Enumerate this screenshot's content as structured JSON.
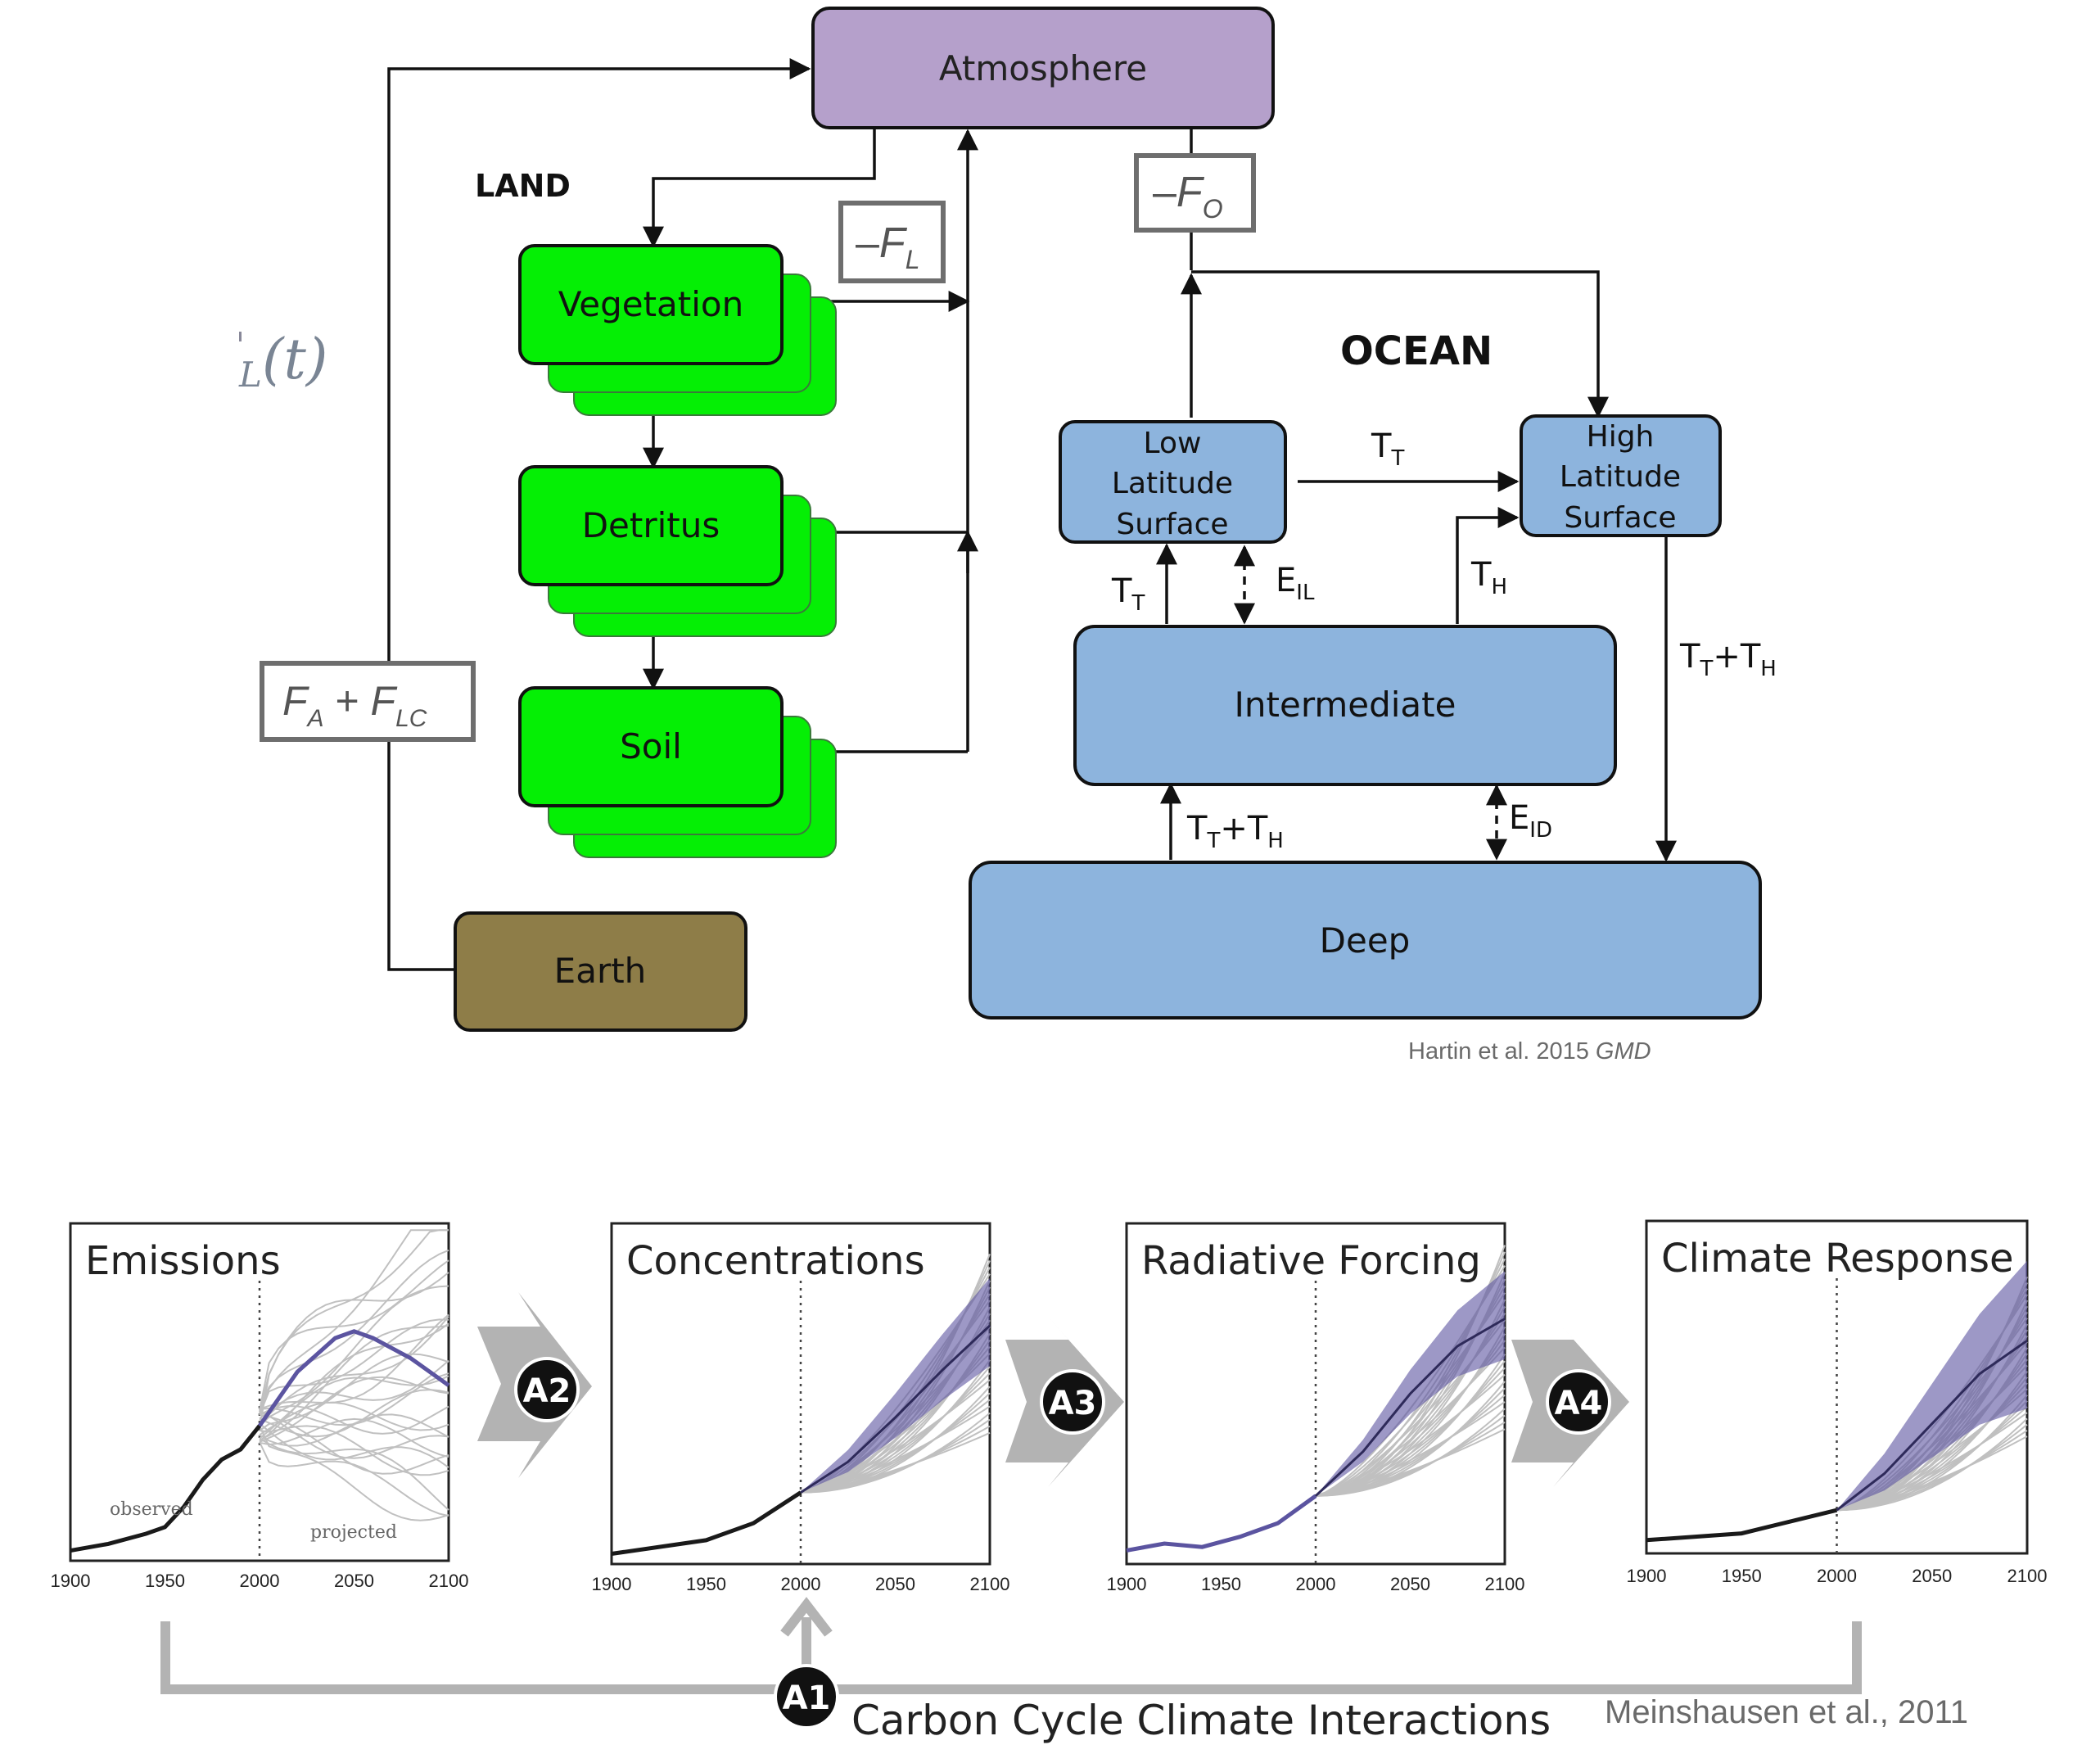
{
  "colors": {
    "atmosphere": "#b5a0cb",
    "land_box": "#05ef05",
    "ocean_box": "#8db4dd",
    "earth_box": "#8e7d48",
    "flux_label_border": "#6e6e6e",
    "chart_line": "#1a1a1a",
    "chart_band": "#5b54a0",
    "chart_spaghetti": "#c0c0c0",
    "gray_arrow": "#b3b3b3",
    "black_badge": "#111111"
  },
  "top_diagram": {
    "atmosphere": "Atmosphere",
    "land_label": "LAND",
    "ocean_label": "OCEAN",
    "land_boxes": [
      "Vegetation",
      "Detritus",
      "Soil"
    ],
    "earth": "Earth",
    "ocean_boxes": {
      "low": [
        "Low",
        "Latitude",
        "Surface"
      ],
      "high": [
        "High",
        "Latitude",
        "Surface"
      ],
      "intermediate": "Intermediate",
      "deep": "Deep"
    },
    "flux_labels": {
      "land_sign": "–",
      "land_base": "F",
      "land_sub": "L",
      "ocean_sign": "–",
      "ocean_base": "F",
      "ocean_sub": "O",
      "anthro_base1": "F",
      "anthro_sub1": "A",
      "anthro_plus": " + ",
      "anthro_base2": "F",
      "anthro_sub2": "LC"
    },
    "partial_formula": {
      "sub": "L",
      "rest": "(t)"
    },
    "transport_labels": {
      "tt_base": "T",
      "tt_sub": "T",
      "th_base": "T",
      "th_sub": "H",
      "eil_base": "E",
      "eil_sub": "IL",
      "eid_base": "E",
      "eid_sub": "ID",
      "plus": "+"
    },
    "citation": {
      "text": "Hartin et al. 2015 ",
      "journal": "GMD"
    }
  },
  "bottom_figure": {
    "caption": "Carbon Cycle Climate Interactions",
    "citation": "Meinshausen et al., 2011",
    "badges": [
      "A1",
      "A2",
      "A3",
      "A4"
    ],
    "annotations": {
      "observed": "observed",
      "projected": "projected"
    },
    "panels": [
      "Emissions",
      "Concentrations",
      "Radiative Forcing",
      "Climate Response"
    ]
  },
  "chart_data": [
    {
      "type": "line",
      "title": "Emissions",
      "x_ticks": [
        "1900",
        "1950",
        "2000",
        "2050",
        "2100"
      ],
      "xlim": [
        1900,
        2100
      ],
      "annotations": [
        "observed",
        "projected"
      ],
      "series": [
        {
          "x": [
            1900,
            1920,
            1940,
            1950,
            1960,
            1970,
            1980,
            1990,
            2000
          ],
          "y": [
            0.03,
            0.05,
            0.08,
            0.1,
            0.16,
            0.24,
            0.3,
            0.33,
            0.4
          ]
        },
        {
          "x": [
            2000,
            2020,
            2040,
            2050,
            2060,
            2080,
            2100
          ],
          "y": [
            0.4,
            0.56,
            0.66,
            0.68,
            0.66,
            0.6,
            0.52
          ]
        }
      ]
    },
    {
      "type": "line",
      "title": "Concentrations",
      "x_ticks": [
        "1900",
        "1950",
        "2000",
        "2050",
        "2100"
      ],
      "xlim": [
        1900,
        2100
      ],
      "series": [
        {
          "x": [
            1900,
            1950,
            1975,
            2000
          ],
          "y": [
            0.03,
            0.07,
            0.12,
            0.21
          ]
        },
        {
          "x": [
            2000,
            2025,
            2050,
            2075,
            2100
          ],
          "y": [
            0.21,
            0.3,
            0.43,
            0.57,
            0.7
          ]
        }
      ]
    },
    {
      "type": "line",
      "title": "Radiative Forcing",
      "x_ticks": [
        "1900",
        "1950",
        "2000",
        "2050",
        "2100"
      ],
      "xlim": [
        1900,
        2100
      ],
      "series": [
        {
          "x": [
            1900,
            1920,
            1940,
            1960,
            1980,
            2000
          ],
          "y": [
            0.04,
            0.06,
            0.05,
            0.08,
            0.12,
            0.2
          ]
        },
        {
          "x": [
            2000,
            2025,
            2050,
            2075,
            2100
          ],
          "y": [
            0.2,
            0.33,
            0.5,
            0.64,
            0.72
          ]
        }
      ]
    },
    {
      "type": "line",
      "title": "Climate Response",
      "x_ticks": [
        "1900",
        "1950",
        "2000",
        "2050",
        "2100"
      ],
      "xlim": [
        1900,
        2100
      ],
      "series": [
        {
          "x": [
            1900,
            1950,
            2000
          ],
          "y": [
            0.04,
            0.06,
            0.13
          ]
        },
        {
          "x": [
            2000,
            2025,
            2050,
            2075,
            2100
          ],
          "y": [
            0.13,
            0.24,
            0.39,
            0.54,
            0.64
          ]
        }
      ]
    }
  ]
}
